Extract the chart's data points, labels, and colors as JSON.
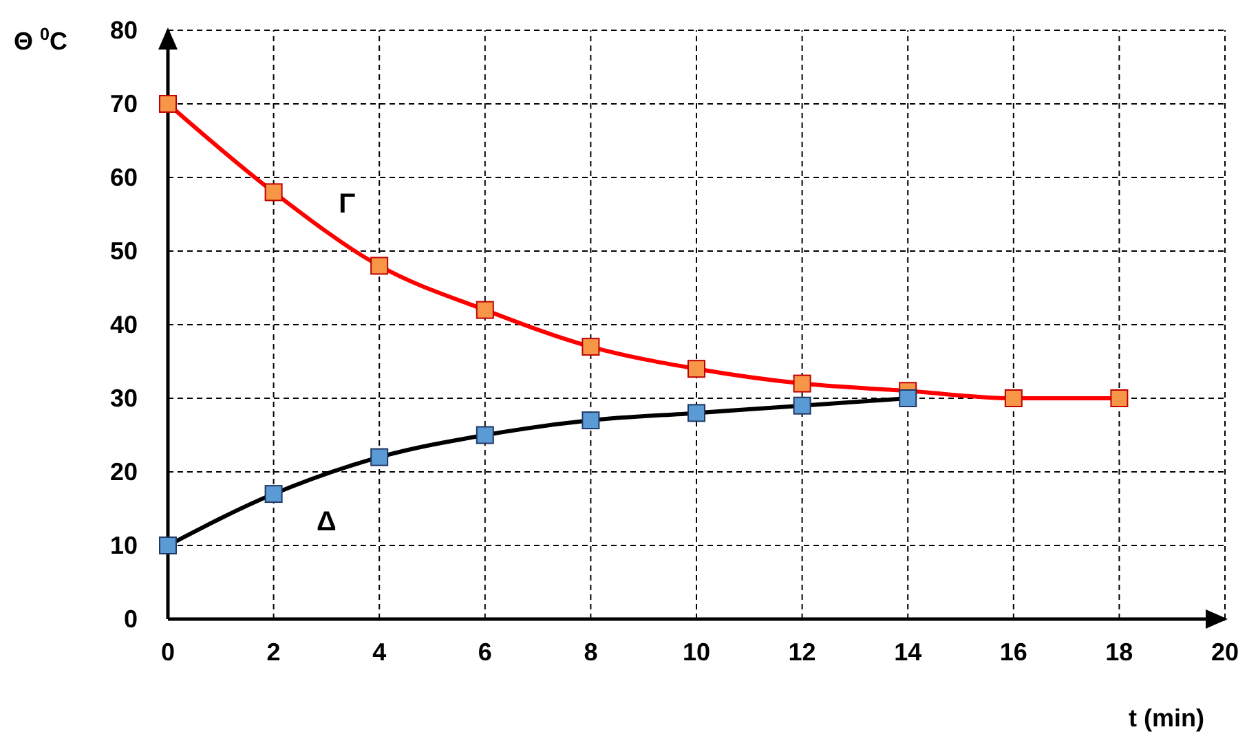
{
  "chart_data": {
    "type": "line",
    "xlabel": "t (min)",
    "ylabel": "Θ $^{0}$C",
    "xlim": [
      0,
      20
    ],
    "ylim": [
      0,
      80
    ],
    "xticks": [
      0,
      2,
      4,
      6,
      8,
      10,
      12,
      14,
      16,
      18,
      20
    ],
    "yticks": [
      0,
      10,
      20,
      30,
      40,
      50,
      60,
      70,
      80
    ],
    "grid": true,
    "marker": "square",
    "line_style": "solid",
    "series": [
      {
        "name": "Γ",
        "color": "#ff0000",
        "x": [
          0,
          2,
          4,
          6,
          8,
          10,
          12,
          14,
          16,
          18
        ],
        "values": [
          70,
          58,
          48,
          42,
          37,
          34,
          32,
          31,
          30,
          30
        ]
      },
      {
        "name": "Δ",
        "color": "#000000",
        "x": [
          0,
          2,
          4,
          6,
          8,
          10,
          12,
          14
        ],
        "values": [
          10,
          17,
          22,
          25,
          27,
          28,
          29,
          30
        ]
      }
    ]
  }
}
